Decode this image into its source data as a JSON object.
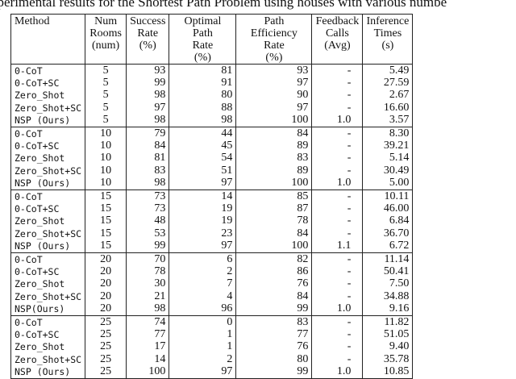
{
  "caption": "xperimental results for the Shortest Path Problem using houses with various numbe",
  "table": {
    "headers": [
      [
        "Method"
      ],
      [
        "Num",
        "Rooms",
        "(num)"
      ],
      [
        "Success",
        "Rate",
        "(%)"
      ],
      [
        "Optimal Path",
        "Rate",
        "(%)"
      ],
      [
        "Path Efficiency",
        "Rate",
        "(%)"
      ],
      [
        "Feedback",
        "Calls",
        "(Avg)"
      ],
      [
        "Inference",
        "Times",
        "(s)"
      ]
    ],
    "groups": [
      [
        [
          "0-CoT",
          "5",
          "93",
          "81",
          "93",
          "-",
          "5.49"
        ],
        [
          "0-CoT+SC",
          "5",
          "99",
          "91",
          "97",
          "-",
          "27.59"
        ],
        [
          "Zero_Shot",
          "5",
          "98",
          "80",
          "90",
          "-",
          "2.67"
        ],
        [
          "Zero_Shot+SC",
          "5",
          "97",
          "88",
          "97",
          "-",
          "16.60"
        ],
        [
          "NSP (Ours)",
          "5",
          "98",
          "98",
          "100",
          "1.0",
          "3.57"
        ]
      ],
      [
        [
          "0-CoT",
          "10",
          "79",
          "44",
          "84",
          "-",
          "8.30"
        ],
        [
          "0-CoT+SC",
          "10",
          "84",
          "45",
          "89",
          "-",
          "39.21"
        ],
        [
          "Zero_Shot",
          "10",
          "81",
          "54",
          "83",
          "-",
          "5.14"
        ],
        [
          "Zero_Shot+SC",
          "10",
          "83",
          "51",
          "89",
          "-",
          "30.49"
        ],
        [
          "NSP (Ours)",
          "10",
          "98",
          "97",
          "100",
          "1.0",
          "5.00"
        ]
      ],
      [
        [
          "0-CoT",
          "15",
          "73",
          "14",
          "85",
          "-",
          "10.11"
        ],
        [
          "0-CoT+SC",
          "15",
          "73",
          "19",
          "87",
          "-",
          "46.00"
        ],
        [
          "Zero_Shot",
          "15",
          "48",
          "19",
          "78",
          "-",
          "6.84"
        ],
        [
          "Zero_Shot+SC",
          "15",
          "53",
          "23",
          "84",
          "-",
          "36.70"
        ],
        [
          "NSP (Ours)",
          "15",
          "99",
          "97",
          "100",
          "1.1",
          "6.72"
        ]
      ],
      [
        [
          "0-CoT",
          "20",
          "70",
          "6",
          "82",
          "-",
          "11.14"
        ],
        [
          "0-CoT+SC",
          "20",
          "78",
          "2",
          "86",
          "-",
          "50.41"
        ],
        [
          "Zero_Shot",
          "20",
          "30",
          "7",
          "76",
          "-",
          "7.50"
        ],
        [
          "Zero_Shot+SC",
          "20",
          "21",
          "4",
          "84",
          "-",
          "34.88"
        ],
        [
          "NSP(Ours)",
          "20",
          "98",
          "96",
          "99",
          "1.0",
          "9.16"
        ]
      ],
      [
        [
          "0-CoT",
          "25",
          "74",
          "0",
          "83",
          "-",
          "11.82"
        ],
        [
          "0-CoT+SC",
          "25",
          "77",
          "1",
          "77",
          "-",
          "51.05"
        ],
        [
          "Zero_Shot",
          "25",
          "17",
          "1",
          "76",
          "-",
          "9.40"
        ],
        [
          "Zero_Shot+SC",
          "25",
          "14",
          "2",
          "80",
          "-",
          "35.78"
        ],
        [
          "NSP (Ours)",
          "25",
          "100",
          "97",
          "99",
          "1.0",
          "10.85"
        ]
      ]
    ]
  }
}
